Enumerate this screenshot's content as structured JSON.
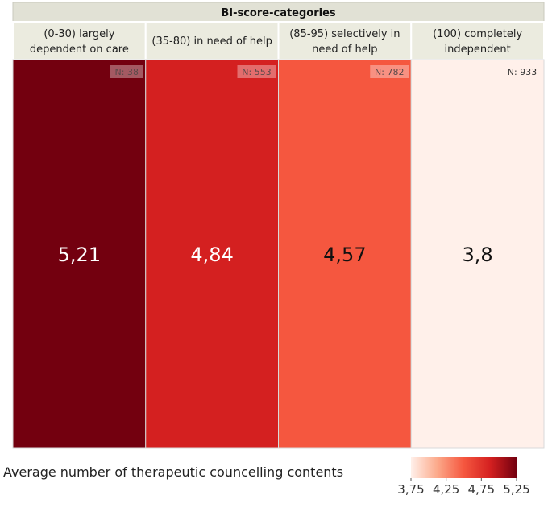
{
  "chart_data": {
    "type": "heatmap",
    "title": "BI-score-categories",
    "categories": [
      {
        "line1": "(0-30) largely",
        "line2": "dependent on care"
      },
      {
        "line1": "(35-80) in need of help",
        "line2": ""
      },
      {
        "line1": "(85-95) selectively in",
        "line2": "need of help"
      },
      {
        "line1": "(100) completely",
        "line2": "independent"
      }
    ],
    "values": [
      5.21,
      4.84,
      4.57,
      3.8
    ],
    "value_labels": [
      "5,21",
      "4,84",
      "4,57",
      "3,8"
    ],
    "counts": [
      "N: 38",
      "N: 553",
      "N: 782",
      "N: 933"
    ],
    "colors": [
      "#73000f",
      "#d42020",
      "#f5573f",
      "#fff0ea"
    ],
    "value_text_colors": [
      "#ffffff",
      "#ffffff",
      "#111111",
      "#111111"
    ],
    "count_badge_dark": [
      true,
      true,
      true,
      false
    ],
    "colorbar": {
      "label": "Average number of therapeutic councelling contents",
      "min": 3.75,
      "max": 5.25,
      "ticks": [
        "3,75",
        "4,25",
        "4,75",
        "5,25"
      ],
      "tick_values": [
        3.75,
        4.25,
        4.75,
        5.25
      ],
      "gradient": [
        "#fff0ea",
        "#fca98a",
        "#f5573f",
        "#d42020",
        "#73000f"
      ]
    }
  }
}
